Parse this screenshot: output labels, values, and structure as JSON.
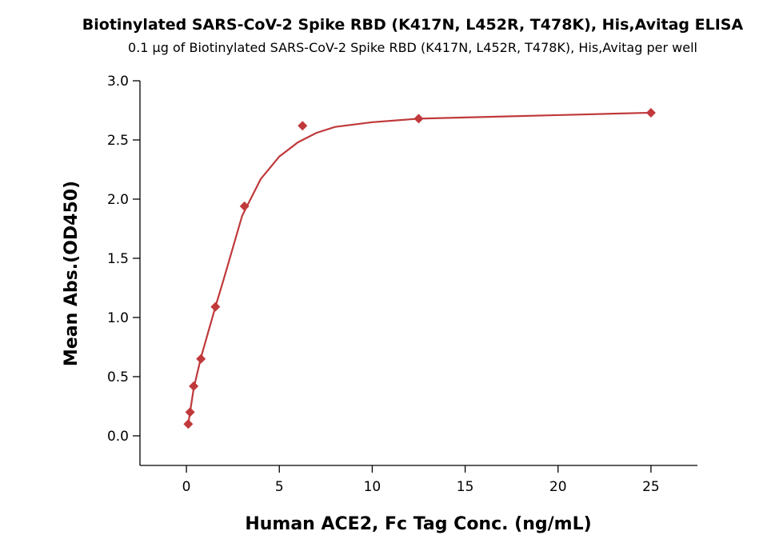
{
  "chart_data": {
    "type": "scatter",
    "title": "Biotinylated SARS-CoV-2 Spike RBD (K417N, L452R, T478K), His,Avitag ELISA",
    "subtitle": "0.1 µg of Biotinylated SARS-CoV-2 Spike RBD (K417N, L452R, T478K), His,Avitag per well",
    "x_label": "Human ACE2, Fc Tag Conc. (ng/mL)",
    "y_label": "Mean Abs.(OD450)",
    "xlim": [
      -2.5,
      27.5
    ],
    "xticks": [
      0,
      5,
      10,
      15,
      20,
      25
    ],
    "ylim": [
      -0.25,
      3.0
    ],
    "yticks": [
      {
        "value": 0,
        "label": "0.0"
      },
      0.5,
      {
        "value": 1,
        "label": "1.0"
      },
      1.5,
      {
        "value": 2,
        "label": "2.0"
      },
      2.5,
      {
        "value": 3,
        "label": "3.0"
      }
    ],
    "series": [
      {
        "color": "#c0393b",
        "x": [
          0.098,
          0.195,
          0.39,
          0.78,
          1.56,
          3.125,
          6.25,
          12.5,
          25
        ],
        "values": [
          0.1,
          0.2,
          0.42,
          0.65,
          1.09,
          1.94,
          2.62,
          2.68,
          2.73
        ]
      },
      {
        "type": "line",
        "color": "#c0393b",
        "x": [
          0.098,
          0.39,
          0.78,
          1.56,
          2,
          3,
          4,
          5,
          6,
          7,
          8,
          10,
          12.5,
          15,
          20,
          25
        ],
        "values": [
          0.1,
          0.4,
          0.66,
          1.09,
          1.32,
          1.86,
          2.17,
          2.36,
          2.48,
          2.56,
          2.61,
          2.65,
          2.68,
          2.69,
          2.71,
          2.73
        ]
      }
    ]
  }
}
